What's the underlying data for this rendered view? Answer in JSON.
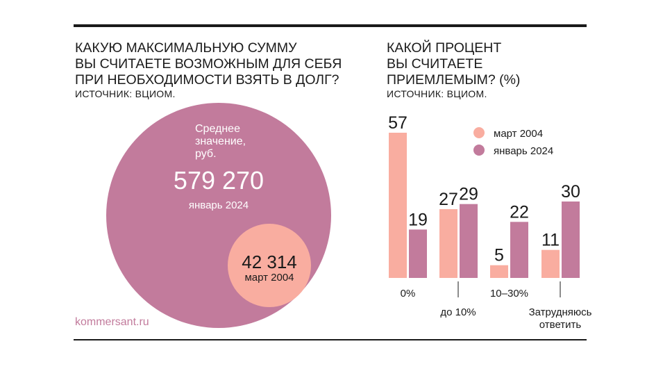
{
  "left_panel": {
    "title_lines": [
      "КАКУЮ МАКСИМАЛЬНУЮ СУММУ",
      "ВЫ СЧИТАЕТЕ ВОЗМОЖНЫМ ДЛЯ СЕБЯ",
      "ПРИ НЕОБХОДИМОСТИ ВЗЯТЬ В ДОЛГ?"
    ],
    "source": "ИСТОЧНИК: ВЦИОМ."
  },
  "right_panel": {
    "title_lines": [
      "КАКОЙ ПРОЦЕНТ",
      "ВЫ СЧИТАЕТЕ",
      "ПРИЕМЛЕМЫМ? (%)"
    ],
    "source": "ИСТОЧНИК: ВЦИОМ."
  },
  "brand": "kommersant.ru",
  "colors": {
    "march_2004": "#f9ada0",
    "january_2024": "#c27b9c",
    "text": "#1a1a1a"
  },
  "chart_data": [
    {
      "type": "bubble",
      "annotation_lines": [
        "Среднее",
        "значение,",
        "руб."
      ],
      "series": [
        {
          "name": "январь 2024",
          "value": 579270,
          "label": "579 270",
          "color": "#c27b9c"
        },
        {
          "name": "март 2004",
          "value": 42314,
          "label": "42 314",
          "color": "#f9ada0"
        }
      ]
    },
    {
      "type": "bar",
      "categories": [
        "0%",
        "до 10%",
        "10–30%",
        "Затрудняюсь ответить"
      ],
      "category_lines": [
        [
          "0%"
        ],
        [
          "до 10%"
        ],
        [
          "10–30%"
        ],
        [
          "Затрудняюсь",
          "ответить"
        ]
      ],
      "series": [
        {
          "name": "март 2004",
          "values": [
            57,
            27,
            5,
            11
          ],
          "color": "#f9ada0"
        },
        {
          "name": "январь 2024",
          "values": [
            19,
            29,
            22,
            30
          ],
          "color": "#c27b9c"
        }
      ],
      "legend_position": "top-right",
      "ylim": [
        0,
        57
      ],
      "grid": false
    }
  ]
}
